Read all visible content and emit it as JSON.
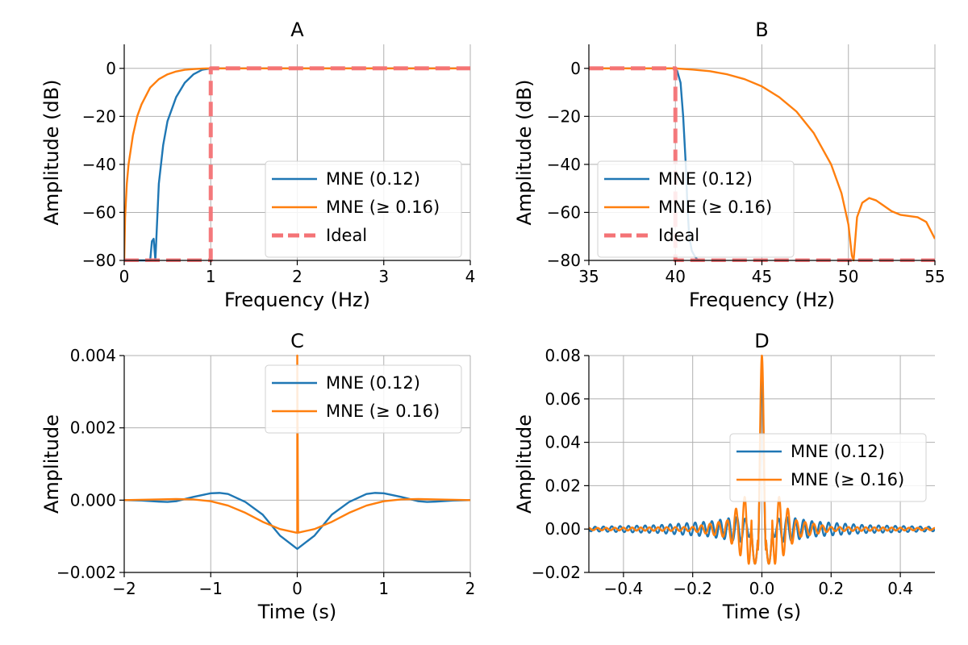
{
  "chart_data": [
    {
      "type": "line",
      "title": "A",
      "xlabel": "Frequency (Hz)",
      "ylabel": "Amplitude (dB)",
      "xlim": [
        0,
        4
      ],
      "ylim": [
        -80,
        10
      ],
      "xticks": [
        0,
        1,
        2,
        3,
        4
      ],
      "yticks": [
        -80,
        -60,
        -40,
        -20,
        0
      ],
      "xtick_labels": [
        "0",
        "1",
        "2",
        "3",
        "4"
      ],
      "ytick_labels": [
        "−80",
        "−60",
        "−40",
        "−20",
        "0"
      ],
      "grid": true,
      "legend": "lower-right",
      "series": [
        {
          "name": "MNE (0.12)",
          "color": "#1f77b4",
          "style": "solid",
          "x": [
            0.0,
            0.3,
            0.32,
            0.34,
            0.36,
            0.4,
            0.45,
            0.5,
            0.6,
            0.7,
            0.8,
            0.9,
            1.0,
            4.0
          ],
          "y": [
            -80,
            -80,
            -72,
            -71,
            -80,
            -48,
            -32,
            -22,
            -12,
            -6,
            -2.5,
            -0.6,
            0,
            0
          ]
        },
        {
          "name": "MNE (≥ 0.16)",
          "color": "#ff7f0e",
          "style": "solid",
          "x": [
            0.0,
            0.01,
            0.03,
            0.05,
            0.1,
            0.15,
            0.2,
            0.3,
            0.4,
            0.5,
            0.6,
            0.7,
            0.8,
            0.9,
            1.0,
            4.0
          ],
          "y": [
            -80,
            -62,
            -48,
            -40,
            -28,
            -20,
            -15,
            -8,
            -4.5,
            -2.5,
            -1.3,
            -0.6,
            -0.3,
            -0.1,
            0,
            0
          ]
        },
        {
          "name": "Ideal",
          "color": "#f47376",
          "style": "dashed",
          "x": [
            0.0,
            1.0,
            1.0,
            4.0
          ],
          "y": [
            -80,
            -80,
            0,
            0
          ]
        }
      ]
    },
    {
      "type": "line",
      "title": "B",
      "xlabel": "Frequency (Hz)",
      "ylabel": "Amplitude (dB)",
      "xlim": [
        35,
        55
      ],
      "ylim": [
        -80,
        10
      ],
      "xticks": [
        35,
        40,
        45,
        50,
        55
      ],
      "yticks": [
        -80,
        -60,
        -40,
        -20,
        0
      ],
      "xtick_labels": [
        "35",
        "40",
        "45",
        "50",
        "55"
      ],
      "ytick_labels": [
        "−80",
        "−60",
        "−40",
        "−20",
        "0"
      ],
      "grid": true,
      "legend": "lower-left",
      "series": [
        {
          "name": "MNE (0.12)",
          "color": "#1f77b4",
          "style": "solid",
          "x": [
            35.0,
            39.9,
            40.1,
            40.3,
            40.45,
            40.6,
            40.7,
            40.8,
            40.95,
            41.1,
            41.25,
            41.4
          ],
          "y": [
            0,
            0,
            -1,
            -6,
            -20,
            -40,
            -58,
            -70,
            -76,
            -78,
            -79.5,
            -80
          ]
        },
        {
          "name": "MNE (≥ 0.16)",
          "color": "#ff7f0e",
          "style": "solid",
          "x": [
            35.0,
            40.0,
            41.0,
            42.0,
            43.0,
            44.0,
            45.0,
            46.0,
            47.0,
            48.0,
            49.0,
            49.6,
            50.0,
            50.2,
            50.3,
            50.5,
            50.8,
            51.2,
            51.6,
            52.0,
            52.5,
            53.0,
            53.5,
            54.0,
            54.5,
            55.0
          ],
          "y": [
            0,
            0,
            -0.5,
            -1.2,
            -2.5,
            -4.5,
            -7.5,
            -12,
            -18,
            -27,
            -40,
            -52,
            -65,
            -78,
            -80,
            -62,
            -56,
            -54,
            -55,
            -57,
            -59.5,
            -61,
            -61.5,
            -62,
            -64,
            -71
          ]
        },
        {
          "name": "Ideal",
          "color": "#f47376",
          "style": "dashed",
          "x": [
            35.0,
            40.0,
            40.0,
            55.0
          ],
          "y": [
            0,
            0,
            -80,
            -80
          ]
        }
      ]
    },
    {
      "type": "line",
      "title": "C",
      "xlabel": "Time (s)",
      "ylabel": "Amplitude",
      "xlim": [
        -2,
        2
      ],
      "ylim": [
        -0.002,
        0.004
      ],
      "xticks": [
        -2,
        -1,
        0,
        1,
        2
      ],
      "yticks": [
        -0.002,
        0.0,
        0.002,
        0.004
      ],
      "xtick_labels": [
        "−2",
        "−1",
        "0",
        "1",
        "2"
      ],
      "ytick_labels": [
        "−0.002",
        "0.000",
        "0.002",
        "0.004"
      ],
      "grid": true,
      "legend": "top-right",
      "series": [
        {
          "name": "MNE (0.12)",
          "color": "#1f77b4",
          "style": "solid",
          "x": [
            -2.0,
            -1.8,
            -1.6,
            -1.5,
            -1.4,
            -1.2,
            -1.0,
            -0.9,
            -0.8,
            -0.6,
            -0.4,
            -0.2,
            0.0,
            0.2,
            0.4,
            0.6,
            0.8,
            0.9,
            1.0,
            1.2,
            1.4,
            1.5,
            1.6,
            1.8,
            2.0
          ],
          "y": [
            0.0,
            -1e-05,
            -4e-05,
            -5e-05,
            -3e-05,
            9e-05,
            0.00019,
            0.0002,
            0.00017,
            -5e-05,
            -0.0004,
            -0.00098,
            -0.00135,
            -0.00098,
            -0.0004,
            -5e-05,
            0.00017,
            0.0002,
            0.00019,
            9e-05,
            -3e-05,
            -5e-05,
            -4e-05,
            -1e-05,
            0.0
          ]
        },
        {
          "name": "MNE (≥ 0.16)",
          "color": "#ff7f0e",
          "style": "solid",
          "x": [
            -2.0,
            -1.6,
            -1.4,
            -1.2,
            -1.0,
            -0.8,
            -0.6,
            -0.4,
            -0.2,
            -0.01,
            0.0,
            0.0,
            0.01,
            0.2,
            0.4,
            0.6,
            0.8,
            1.0,
            1.2,
            1.4,
            1.6,
            2.0
          ],
          "y": [
            0.0,
            2e-05,
            3e-05,
            2e-05,
            -3e-05,
            -0.00015,
            -0.00035,
            -0.0006,
            -0.0008,
            -0.0009,
            -0.0009,
            0.004,
            -0.0009,
            -0.0008,
            -0.0006,
            -0.00035,
            -0.00015,
            -3e-05,
            2e-05,
            3e-05,
            2e-05,
            0.0
          ]
        }
      ]
    },
    {
      "type": "line",
      "title": "D",
      "xlabel": "Time (s)",
      "ylabel": "Amplitude",
      "xlim": [
        -0.5,
        0.5
      ],
      "ylim": [
        -0.02,
        0.08
      ],
      "xticks": [
        -0.4,
        -0.2,
        0.0,
        0.2,
        0.4
      ],
      "yticks": [
        -0.02,
        0.0,
        0.02,
        0.04,
        0.06,
        0.08
      ],
      "xtick_labels": [
        "−0.4",
        "−0.2",
        "0.0",
        "0.2",
        "0.4"
      ],
      "ytick_labels": [
        "−0.02",
        "0.00",
        "0.02",
        "0.04",
        "0.06",
        "0.08"
      ],
      "grid": true,
      "legend": "center-right",
      "series": [
        {
          "name": "MNE (0.12)",
          "color": "#1f77b4",
          "style": "solid",
          "x": [
            -0.5,
            -0.4,
            -0.3,
            -0.2,
            -0.1,
            -0.05,
            0.0,
            0.05,
            0.1,
            0.2,
            0.3,
            0.4,
            0.5
          ],
          "y": [
            0.0,
            0.0,
            0.0,
            0.0,
            0.0,
            0.0,
            0.07,
            0.0,
            0.0,
            0.0,
            0.0,
            0.0,
            0.0
          ],
          "envelope": [
            [
              -0.5,
              0.001
            ],
            [
              -0.3,
              0.0018
            ],
            [
              -0.15,
              0.0035
            ],
            [
              -0.06,
              0.006
            ],
            [
              0.0,
              0.0
            ],
            [
              0.06,
              0.006
            ],
            [
              0.15,
              0.0035
            ],
            [
              0.3,
              0.0018
            ],
            [
              0.5,
              0.001
            ]
          ]
        },
        {
          "name": "MNE (≥ 0.16)",
          "color": "#ff7f0e",
          "style": "solid",
          "x": [
            -0.5,
            -0.3,
            -0.2,
            -0.1,
            -0.05,
            0.0,
            0.05,
            0.1,
            0.2,
            0.3,
            0.5
          ],
          "y": [
            0.0,
            0.0,
            0.0,
            0.0,
            0.0,
            0.08,
            0.0,
            0.0,
            0.0,
            0.0,
            0.0
          ],
          "envelope": [
            [
              -0.5,
              0.0005
            ],
            [
              -0.2,
              0.001
            ],
            [
              -0.1,
              0.004
            ],
            [
              -0.04,
              0.017
            ],
            [
              0.0,
              0.0
            ],
            [
              0.04,
              0.017
            ],
            [
              0.1,
              0.004
            ],
            [
              0.2,
              0.001
            ],
            [
              0.5,
              0.0005
            ]
          ]
        }
      ]
    }
  ]
}
